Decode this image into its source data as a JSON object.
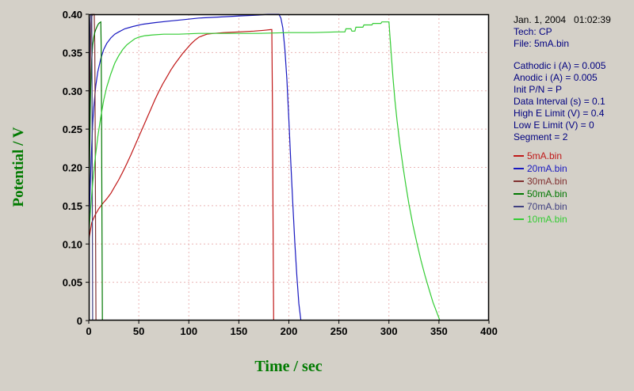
{
  "info_panel": {
    "datetime": "Jan. 1, 2004   01:02:39",
    "tech": "Tech: CP",
    "file": "File: 5mA.bin",
    "params": [
      "Cathodic i (A) = 0.005",
      "Anodic i (A) = 0.005",
      "Init P/N = P",
      "Data Interval (s) = 0.1",
      "High E Limit (V) = 0.4",
      "Low E Limit (V) = 0",
      "Segment = 2"
    ],
    "legend": [
      {
        "label": "5mA.bin",
        "color": "#c01818"
      },
      {
        "label": "20mA.bin",
        "color": "#1818c0"
      },
      {
        "label": "30mA.bin",
        "color": "#803030"
      },
      {
        "label": "50mA.bin",
        "color": "#007700"
      },
      {
        "label": "70mA.bin",
        "color": "#404080"
      },
      {
        "label": "10mA.bin",
        "color": "#33cc33"
      }
    ]
  },
  "chart_data": {
    "type": "line",
    "title": "",
    "xlabel": "Time / sec",
    "ylabel": "Potential / V",
    "xlim": [
      0,
      400
    ],
    "ylim": [
      0,
      0.4
    ],
    "xticks": [
      0,
      50,
      100,
      150,
      200,
      250,
      300,
      350,
      400
    ],
    "yticks": [
      0,
      0.05,
      0.1,
      0.15,
      0.2,
      0.25,
      0.3,
      0.35,
      0.4
    ],
    "grid": "dashed",
    "grid_color": "#eab4b4",
    "legend_position": "right-panel",
    "series": [
      {
        "name": "5mA.bin",
        "color": "#c01818",
        "points": [
          [
            0,
            0.105
          ],
          [
            3,
            0.128
          ],
          [
            6,
            0.137
          ],
          [
            10,
            0.146
          ],
          [
            14,
            0.153
          ],
          [
            18,
            0.159
          ],
          [
            22,
            0.166
          ],
          [
            26,
            0.175
          ],
          [
            30,
            0.184
          ],
          [
            34,
            0.194
          ],
          [
            38,
            0.205
          ],
          [
            42,
            0.216
          ],
          [
            46,
            0.228
          ],
          [
            50,
            0.24
          ],
          [
            54,
            0.252
          ],
          [
            58,
            0.264
          ],
          [
            62,
            0.276
          ],
          [
            66,
            0.288
          ],
          [
            70,
            0.299
          ],
          [
            74,
            0.309
          ],
          [
            78,
            0.318
          ],
          [
            82,
            0.327
          ],
          [
            86,
            0.335
          ],
          [
            90,
            0.342
          ],
          [
            94,
            0.349
          ],
          [
            98,
            0.355
          ],
          [
            102,
            0.361
          ],
          [
            106,
            0.366
          ],
          [
            110,
            0.37
          ],
          [
            114,
            0.372
          ],
          [
            118,
            0.374
          ],
          [
            125,
            0.375
          ],
          [
            135,
            0.376
          ],
          [
            150,
            0.377
          ],
          [
            165,
            0.378
          ],
          [
            175,
            0.379
          ],
          [
            182,
            0.38
          ],
          [
            183,
            0.38
          ],
          [
            183.6,
            0.28
          ],
          [
            184.2,
            0.12
          ],
          [
            184.8,
            0
          ]
        ]
      },
      {
        "name": "20mA.bin",
        "color": "#1818c0",
        "points": [
          [
            0,
            0.115
          ],
          [
            1,
            0.155
          ],
          [
            2,
            0.195
          ],
          [
            3,
            0.23
          ],
          [
            4,
            0.258
          ],
          [
            5,
            0.278
          ],
          [
            7,
            0.306
          ],
          [
            9,
            0.325
          ],
          [
            12,
            0.342
          ],
          [
            15,
            0.354
          ],
          [
            18,
            0.362
          ],
          [
            22,
            0.369
          ],
          [
            26,
            0.374
          ],
          [
            30,
            0.377
          ],
          [
            36,
            0.381
          ],
          [
            44,
            0.384
          ],
          [
            54,
            0.387
          ],
          [
            66,
            0.389
          ],
          [
            80,
            0.391
          ],
          [
            95,
            0.393
          ],
          [
            110,
            0.395
          ],
          [
            125,
            0.396
          ],
          [
            140,
            0.397
          ],
          [
            155,
            0.398
          ],
          [
            170,
            0.399
          ],
          [
            180,
            0.4
          ],
          [
            190,
            0.4
          ],
          [
            192,
            0.395
          ],
          [
            194,
            0.382
          ],
          [
            196,
            0.355
          ],
          [
            198,
            0.315
          ],
          [
            200,
            0.262
          ],
          [
            202,
            0.205
          ],
          [
            204,
            0.15
          ],
          [
            206,
            0.1
          ],
          [
            208,
            0.058
          ],
          [
            210,
            0.022
          ],
          [
            212,
            0
          ]
        ]
      },
      {
        "name": "30mA.bin",
        "color": "#803030",
        "points": [
          [
            0,
            0.12
          ],
          [
            0.5,
            0.19
          ],
          [
            1,
            0.268
          ],
          [
            1.5,
            0.33
          ],
          [
            2,
            0.368
          ],
          [
            2.5,
            0.388
          ],
          [
            3,
            0.397
          ],
          [
            4,
            0.4
          ],
          [
            5.5,
            0.4
          ],
          [
            6,
            0.36
          ],
          [
            6.4,
            0.25
          ],
          [
            6.8,
            0.12
          ],
          [
            7.2,
            0
          ]
        ]
      },
      {
        "name": "50mA.bin",
        "color": "#007700",
        "points": [
          [
            0,
            0.123
          ],
          [
            0.5,
            0.17
          ],
          [
            1,
            0.225
          ],
          [
            1.5,
            0.272
          ],
          [
            2,
            0.305
          ],
          [
            3,
            0.342
          ],
          [
            4,
            0.36
          ],
          [
            5,
            0.37
          ],
          [
            6,
            0.376
          ],
          [
            7,
            0.38
          ],
          [
            8,
            0.383
          ],
          [
            9,
            0.386
          ],
          [
            10,
            0.388
          ],
          [
            11,
            0.389
          ],
          [
            12,
            0.39
          ],
          [
            12.4,
            0.355
          ],
          [
            12.8,
            0.25
          ],
          [
            13.2,
            0.12
          ],
          [
            13.6,
            0
          ]
        ]
      },
      {
        "name": "70mA.bin",
        "color": "#404080",
        "points": [
          [
            0,
            0.13
          ],
          [
            0.3,
            0.21
          ],
          [
            0.6,
            0.29
          ],
          [
            0.9,
            0.345
          ],
          [
            1.2,
            0.378
          ],
          [
            1.5,
            0.392
          ],
          [
            2,
            0.399
          ],
          [
            2.5,
            0.4
          ],
          [
            3,
            0.4
          ],
          [
            3.3,
            0.3
          ],
          [
            3.6,
            0.15
          ],
          [
            3.9,
            0
          ]
        ]
      },
      {
        "name": "10mA.bin",
        "color": "#33cc33",
        "points": [
          [
            0,
            0.11
          ],
          [
            2,
            0.148
          ],
          [
            4,
            0.18
          ],
          [
            6,
            0.207
          ],
          [
            9,
            0.24
          ],
          [
            12,
            0.266
          ],
          [
            15,
            0.288
          ],
          [
            18,
            0.305
          ],
          [
            22,
            0.322
          ],
          [
            26,
            0.336
          ],
          [
            30,
            0.346
          ],
          [
            34,
            0.354
          ],
          [
            38,
            0.36
          ],
          [
            42,
            0.364
          ],
          [
            46,
            0.368
          ],
          [
            50,
            0.37
          ],
          [
            56,
            0.372
          ],
          [
            64,
            0.373
          ],
          [
            75,
            0.374
          ],
          [
            90,
            0.374
          ],
          [
            110,
            0.375
          ],
          [
            140,
            0.375
          ],
          [
            170,
            0.375
          ],
          [
            200,
            0.376
          ],
          [
            225,
            0.376
          ],
          [
            248,
            0.377
          ],
          [
            256,
            0.377
          ],
          [
            257,
            0.381
          ],
          [
            262,
            0.381
          ],
          [
            263,
            0.378
          ],
          [
            266,
            0.378
          ],
          [
            267,
            0.383
          ],
          [
            274,
            0.383
          ],
          [
            275,
            0.386
          ],
          [
            283,
            0.386
          ],
          [
            284,
            0.388
          ],
          [
            292,
            0.388
          ],
          [
            293,
            0.39
          ],
          [
            299,
            0.39
          ],
          [
            300,
            0.39
          ],
          [
            301,
            0.372
          ],
          [
            302.5,
            0.345
          ],
          [
            304,
            0.318
          ],
          [
            306,
            0.288
          ],
          [
            308,
            0.262
          ],
          [
            311,
            0.23
          ],
          [
            314,
            0.202
          ],
          [
            317,
            0.176
          ],
          [
            320,
            0.152
          ],
          [
            324,
            0.125
          ],
          [
            328,
            0.101
          ],
          [
            332,
            0.079
          ],
          [
            336,
            0.059
          ],
          [
            340,
            0.041
          ],
          [
            344,
            0.024
          ],
          [
            348,
            0.01
          ],
          [
            351,
            0
          ]
        ]
      }
    ]
  }
}
